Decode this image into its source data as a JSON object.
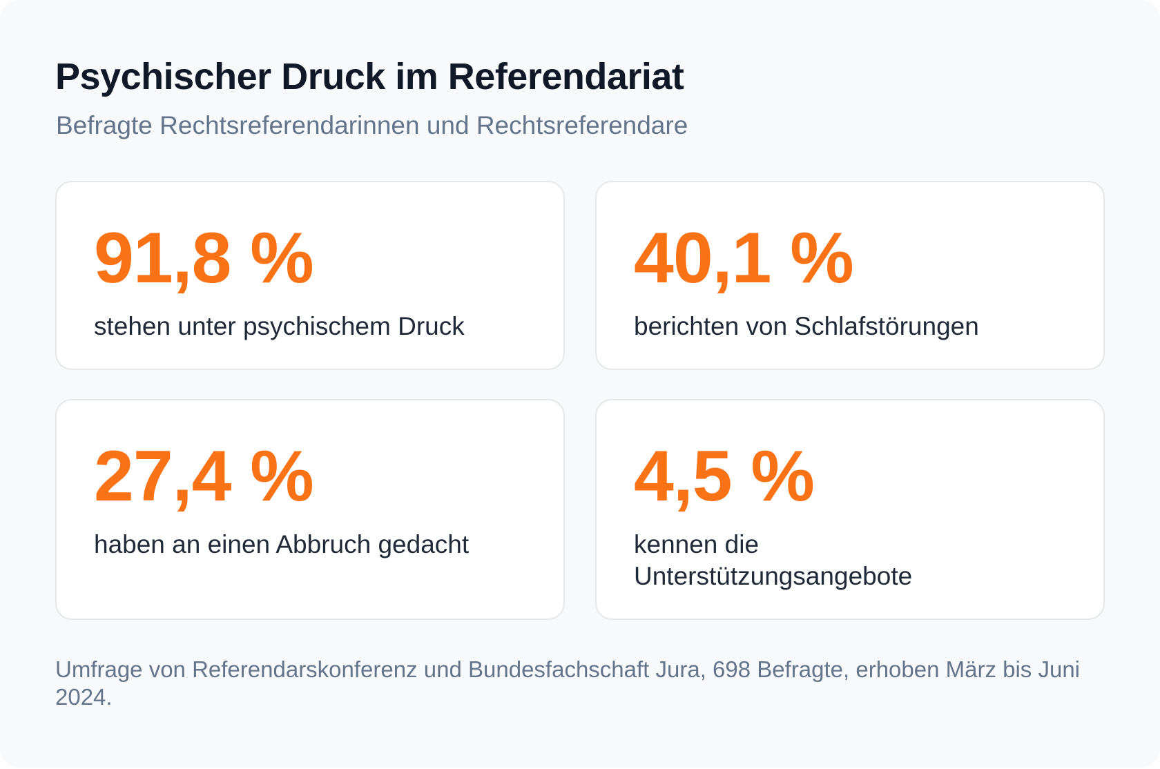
{
  "header": {
    "title": "Psychischer Druck im Referendariat",
    "subtitle": "Befragte Rechtsreferendarinnen und Rechtsreferendare"
  },
  "stats": [
    {
      "value": "91,8 %",
      "label": "stehen unter psychischem Druck"
    },
    {
      "value": "40,1 %",
      "label": "berichten von Schlafstörungen"
    },
    {
      "value": "27,4 %",
      "label": "haben an einen Abbruch gedacht"
    },
    {
      "value": "4,5 %",
      "label": "kennen die Unterstützungsangebote"
    }
  ],
  "footnote": "Umfrage von Referendarskonferenz und Bundesfachschaft Jura, 698 Befragte, erhoben März bis Juni 2024.",
  "colors": {
    "accent": "#f97316",
    "title": "#111827",
    "muted": "#64748b",
    "background": "#f8f9fb",
    "card": "#ffffff",
    "border": "#e5e7eb"
  }
}
